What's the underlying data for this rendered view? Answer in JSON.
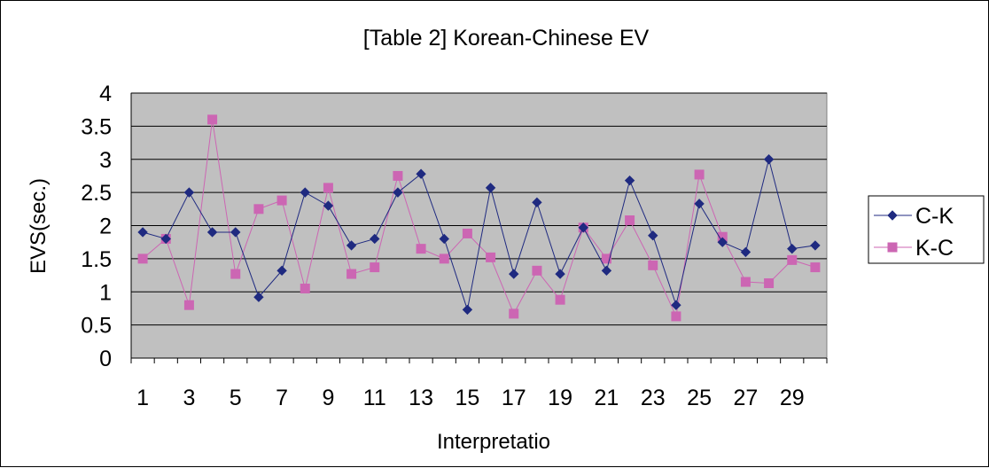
{
  "chart_data": {
    "type": "line",
    "title": "[Table 2] Korean-Chinese EV",
    "xlabel": "Interpretatio",
    "ylabel": "EVS(sec.)",
    "ylim": [
      0,
      4
    ],
    "y_ticks": [
      "0",
      "0.5",
      "1",
      "1.5",
      "2",
      "2.5",
      "3",
      "3.5",
      "4"
    ],
    "x": [
      1,
      2,
      3,
      4,
      5,
      6,
      7,
      8,
      9,
      10,
      11,
      12,
      13,
      14,
      15,
      16,
      17,
      18,
      19,
      20,
      21,
      22,
      23,
      24,
      25,
      26,
      27,
      28,
      29,
      30
    ],
    "x_tick_labels": [
      "1",
      "3",
      "5",
      "7",
      "9",
      "11",
      "13",
      "15",
      "17",
      "19",
      "21",
      "23",
      "25",
      "27",
      "29"
    ],
    "grid": true,
    "legend_position": "right",
    "plot_background": "#c0c0c0",
    "series": [
      {
        "name": "C-K",
        "color": "#1f2a80",
        "marker": "diamond",
        "values": [
          1.9,
          1.8,
          2.5,
          1.9,
          1.9,
          0.92,
          1.32,
          2.5,
          2.3,
          1.7,
          1.8,
          2.5,
          2.78,
          1.8,
          0.73,
          2.57,
          1.27,
          2.35,
          1.27,
          1.97,
          1.32,
          2.68,
          1.85,
          0.8,
          2.33,
          1.75,
          1.6,
          3.0,
          1.65,
          1.7
        ]
      },
      {
        "name": "K-C",
        "color": "#cc66b3",
        "marker": "square",
        "values": [
          1.5,
          1.8,
          0.8,
          3.6,
          1.27,
          2.25,
          2.38,
          1.05,
          2.57,
          1.27,
          1.37,
          2.75,
          1.65,
          1.5,
          1.88,
          1.52,
          0.67,
          1.32,
          0.88,
          1.97,
          1.5,
          2.08,
          1.4,
          0.63,
          2.77,
          1.83,
          1.15,
          1.13,
          1.48,
          1.37
        ]
      }
    ]
  }
}
